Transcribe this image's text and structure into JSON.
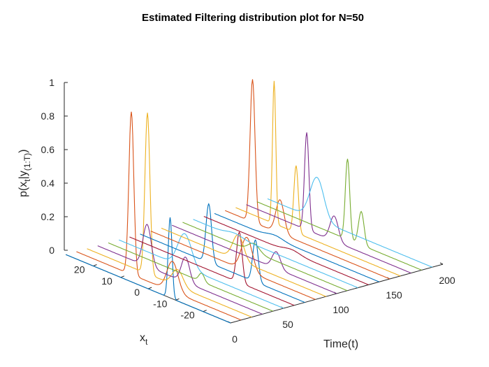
{
  "chart_data": {
    "type": "line",
    "title": "Estimated Filtering distribution plot for N=50",
    "xlabel": "Time(t)",
    "ylabel": "x_t",
    "zlabel": "p(x_t|y_(1:T))",
    "xlabel_main": "Time(t)",
    "ylabel_main": "x",
    "ylabel_sub": "t",
    "zlabel_parts": {
      "p": "p(x",
      "t": "t",
      "mid": "|y",
      "sub": "(1:T)",
      "end": ")"
    },
    "xlim": [
      0,
      200
    ],
    "ylim": [
      -30,
      30
    ],
    "zlim": [
      0,
      1
    ],
    "x_ticks": [
      "0",
      "50",
      "100",
      "150",
      "200"
    ],
    "y_ticks": [
      "20",
      "10",
      "0",
      "-10",
      "-20"
    ],
    "z_ticks": [
      "0",
      "0.2",
      "0.4",
      "0.6",
      "0.8",
      "1"
    ],
    "grid": false,
    "legend": "none",
    "colors": [
      "#0072BD",
      "#D95319",
      "#EDB120",
      "#7E2F8E",
      "#77AC30",
      "#4DBEEE",
      "#A2142F"
    ],
    "time_slices": [
      0,
      10,
      20,
      30,
      40,
      50,
      60,
      70,
      80,
      90,
      100,
      110,
      120,
      130,
      140,
      150,
      160,
      170,
      180,
      190
    ],
    "series": [
      {
        "t": 0,
        "peaks": [
          {
            "x": -8,
            "p": 0.48,
            "w": 0.7
          }
        ]
      },
      {
        "t": 10,
        "peaks": [
          {
            "x": 10,
            "p": 0.97,
            "w": 0.9
          },
          {
            "x": -5,
            "p": 0.18,
            "w": 2.0
          }
        ]
      },
      {
        "t": 20,
        "peaks": [
          {
            "x": 8,
            "p": 0.96,
            "w": 0.9
          },
          {
            "x": -3,
            "p": 0.1,
            "w": 2.0
          }
        ]
      },
      {
        "t": 30,
        "peaks": [
          {
            "x": 12,
            "p": 0.25,
            "w": 1.5
          },
          {
            "x": -2,
            "p": 0.15,
            "w": 1.5
          }
        ]
      },
      {
        "t": 40,
        "peaks": [
          {
            "x": -4,
            "p": 0.05,
            "w": 1.0
          }
        ]
      },
      {
        "t": 50,
        "peaks": [
          {
            "x": 6,
            "p": 0.2,
            "w": 2.5
          }
        ]
      },
      {
        "t": 60,
        "peaks": [
          {
            "x": -10,
            "p": 0.3,
            "w": 1.0
          }
        ]
      },
      {
        "t": 70,
        "peaks": [
          {
            "x": 5,
            "p": 0.35,
            "w": 1.0
          },
          {
            "x": -12,
            "p": 0.25,
            "w": 1.0
          }
        ]
      },
      {
        "t": 80,
        "peaks": [
          {
            "x": -5,
            "p": 0.2,
            "w": 2.0
          }
        ]
      },
      {
        "t": 90,
        "peaks": [
          {
            "x": 2,
            "p": 0.15,
            "w": 2.0
          }
        ]
      },
      {
        "t": 100,
        "peaks": [
          {
            "x": -8,
            "p": 0.1,
            "w": 1.5
          }
        ]
      },
      {
        "t": 110,
        "peaks": [
          {
            "x": 4,
            "p": 0.05,
            "w": 2.0
          }
        ]
      },
      {
        "t": 120,
        "peaks": [
          {
            "x": 15,
            "p": 0.02,
            "w": 3.0
          }
        ]
      },
      {
        "t": 130,
        "peaks": [
          {
            "x": -2,
            "p": 0.02,
            "w": 3.0
          }
        ]
      },
      {
        "t": 140,
        "peaks": [
          {
            "x": 8,
            "p": 0.02,
            "w": 3.0
          }
        ]
      },
      {
        "t": 150,
        "peaks": [
          {
            "x": 20,
            "p": 0.85,
            "w": 0.9
          },
          {
            "x": 10,
            "p": 0.2,
            "w": 1.5
          }
        ]
      },
      {
        "t": 160,
        "peaks": [
          {
            "x": 16,
            "p": 0.85,
            "w": 0.6
          },
          {
            "x": 8,
            "p": 0.4,
            "w": 0.8
          }
        ]
      },
      {
        "t": 170,
        "peaks": [
          {
            "x": 8,
            "p": 0.58,
            "w": 0.8
          },
          {
            "x": -2,
            "p": 0.15,
            "w": 1.5
          }
        ]
      },
      {
        "t": 180,
        "peaks": [
          {
            "x": -3,
            "p": 0.48,
            "w": 0.8
          },
          {
            "x": -8,
            "p": 0.2,
            "w": 1.0
          }
        ]
      },
      {
        "t": 190,
        "peaks": [
          {
            "x": 12,
            "p": 0.25,
            "w": 2.5
          }
        ]
      }
    ]
  }
}
